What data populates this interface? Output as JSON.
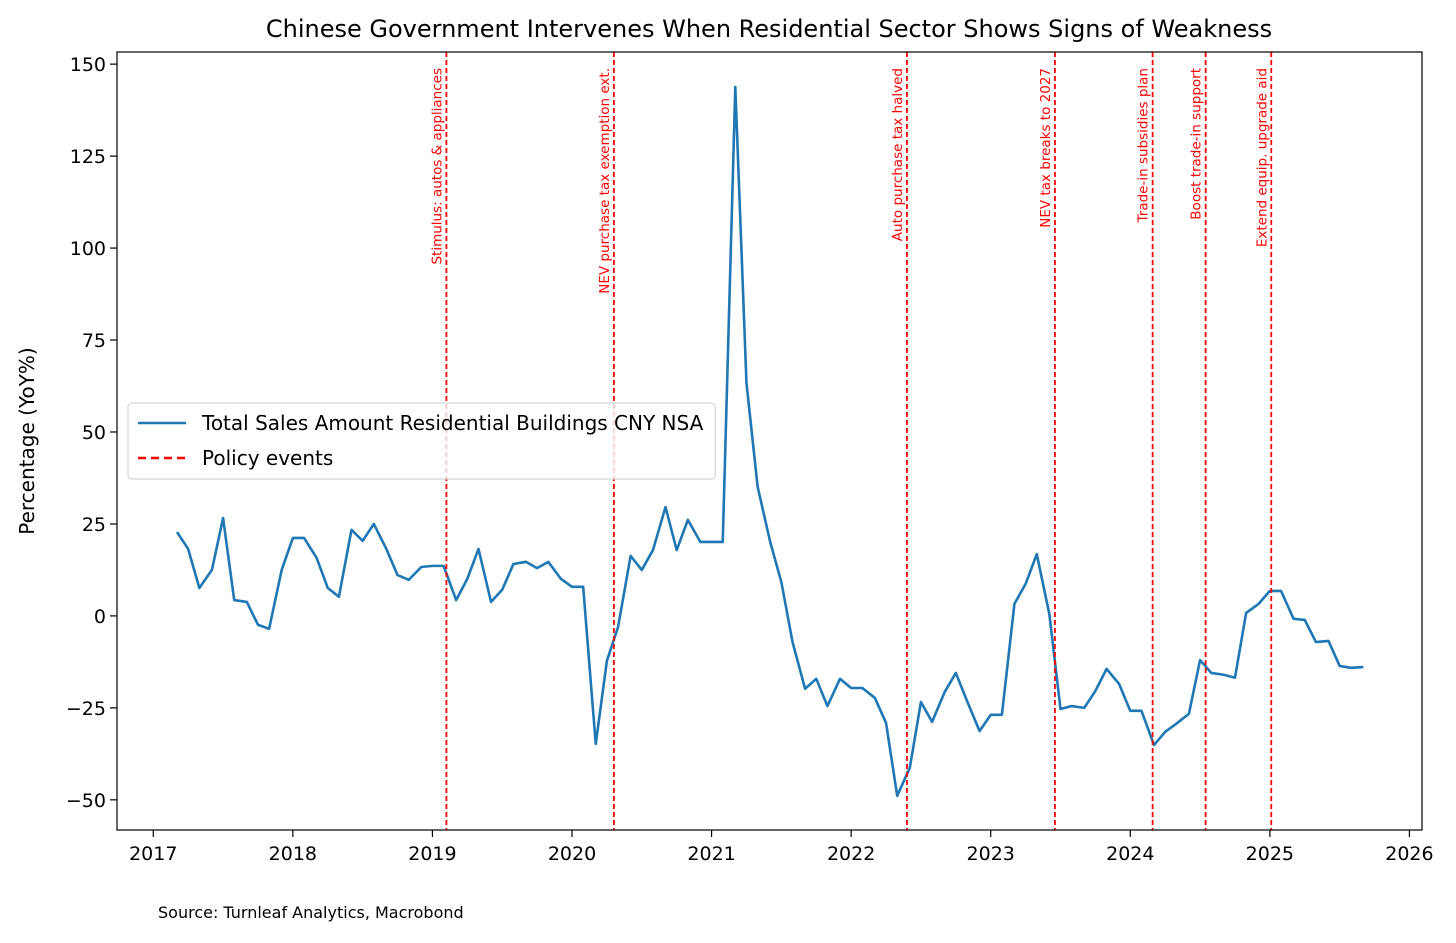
{
  "chart_data": {
    "type": "line",
    "title": "Chinese Government Intervenes When Residential Sector Shows Signs of Weakness",
    "ylabel": "Percentage (YoY%)",
    "source": "Source: Turnleaf Analytics, Macrobond",
    "x": [
      2017.17,
      2017.25,
      2017.33,
      2017.42,
      2017.5,
      2017.58,
      2017.67,
      2017.75,
      2017.83,
      2017.92,
      2018.0,
      2018.08,
      2018.17,
      2018.25,
      2018.33,
      2018.42,
      2018.5,
      2018.58,
      2018.67,
      2018.75,
      2018.83,
      2018.92,
      2019.0,
      2019.08,
      2019.17,
      2019.25,
      2019.33,
      2019.42,
      2019.5,
      2019.58,
      2019.67,
      2019.75,
      2019.83,
      2019.92,
      2020.0,
      2020.08,
      2020.17,
      2020.25,
      2020.33,
      2020.42,
      2020.5,
      2020.58,
      2020.67,
      2020.75,
      2020.83,
      2020.92,
      2021.0,
      2021.08,
      2021.17,
      2021.25,
      2021.33,
      2021.42,
      2021.5,
      2021.58,
      2021.67,
      2021.75,
      2021.83,
      2021.92,
      2022.0,
      2022.08,
      2022.17,
      2022.25,
      2022.33,
      2022.42,
      2022.5,
      2022.58,
      2022.67,
      2022.75,
      2022.83,
      2022.92,
      2023.0,
      2023.08,
      2023.17,
      2023.25,
      2023.33,
      2023.42,
      2023.5,
      2023.58,
      2023.67,
      2023.75,
      2023.83,
      2023.92,
      2024.0,
      2024.08,
      2024.17,
      2024.25,
      2024.33,
      2024.42,
      2024.5,
      2024.58,
      2024.67,
      2024.75,
      2024.83,
      2024.92,
      2025.0,
      2025.08,
      2025.17,
      2025.25,
      2025.33,
      2025.42,
      2025.5,
      2025.58,
      2025.67
    ],
    "series": [
      {
        "name": "Total Sales Amount Residential Buildings CNY NSA",
        "color": "#1f77b4",
        "values": [
          22.8,
          18.2,
          7.6,
          12.5,
          26.6,
          4.3,
          3.8,
          -2.4,
          -3.5,
          12.5,
          21.2,
          21.2,
          15.8,
          7.6,
          5.2,
          23.4,
          20.4,
          25.0,
          18.2,
          11.1,
          9.8,
          13.3,
          13.6,
          13.6,
          4.3,
          10.1,
          18.2,
          3.8,
          7.1,
          14.1,
          14.7,
          13.0,
          14.7,
          10.1,
          7.9,
          7.9,
          -34.8,
          -12.2,
          -3.0,
          16.3,
          12.5,
          17.9,
          29.6,
          17.9,
          26.1,
          20.1,
          20.1,
          20.1,
          143.8,
          63.3,
          35.1,
          20.1,
          9.2,
          -7.1,
          -19.8,
          -17.1,
          -24.5,
          -17.1,
          -19.6,
          -19.6,
          -22.3,
          -29.1,
          -48.9,
          -41.3,
          -23.4,
          -28.8,
          -20.7,
          -15.5,
          -23.1,
          -31.3,
          -26.9,
          -26.9,
          3.3,
          8.7,
          16.8,
          0.5,
          -25.3,
          -24.5,
          -25.0,
          -20.4,
          -14.4,
          -18.5,
          -25.8,
          -25.8,
          -35.1,
          -31.5,
          -29.3,
          -26.6,
          -12.0,
          -15.5,
          -16.0,
          -16.8,
          0.8,
          3.3,
          6.8,
          6.8,
          -0.8,
          -1.1,
          -7.1,
          -6.8,
          -13.6,
          -14.1,
          -13.9
        ]
      }
    ],
    "events_name": "Policy events",
    "events_color": "red",
    "events": [
      {
        "x": 2019.1,
        "label": "Stimulus: autos & appliances"
      },
      {
        "x": 2020.3,
        "label": "NEV purchase tax exemption ext."
      },
      {
        "x": 2022.4,
        "label": "Auto purchase tax halved"
      },
      {
        "x": 2023.46,
        "label": "NEV tax breaks to 2027"
      },
      {
        "x": 2024.16,
        "label": "Trade-in subsidies plan"
      },
      {
        "x": 2024.54,
        "label": "Boost trade-in support"
      },
      {
        "x": 2025.01,
        "label": "Extend equip. upgrade aid"
      }
    ],
    "xlim": [
      2016.74,
      2026.09
    ],
    "xticks": [
      2017,
      2018,
      2019,
      2020,
      2021,
      2022,
      2023,
      2024,
      2025,
      2026
    ],
    "ylim": [
      -58.2,
      153.3
    ],
    "yticks": [
      {
        "value": -50,
        "label": "−50"
      },
      {
        "value": -25,
        "label": "−25"
      },
      0,
      25,
      50,
      75,
      100,
      125,
      150
    ],
    "legend": "center left",
    "grid": false
  }
}
